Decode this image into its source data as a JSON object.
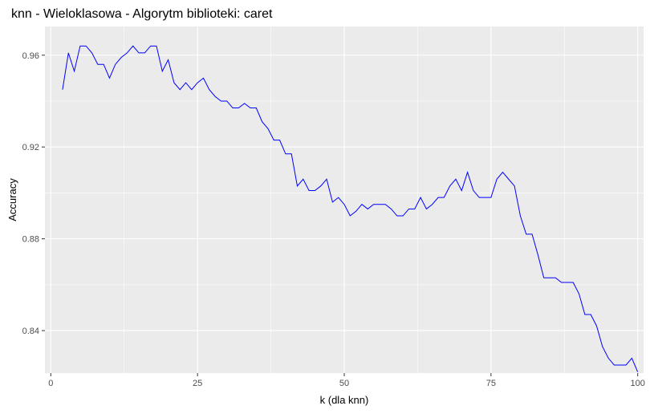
{
  "chart_data": {
    "type": "line",
    "title": "knn - Wieloklasowa - Algorytm biblioteki: caret",
    "xlabel": "k (dla knn)",
    "ylabel": "Accuracy",
    "xlim": [
      -1,
      101
    ],
    "ylim": [
      0.8215,
      0.9725
    ],
    "x_ticks": [
      0,
      25,
      50,
      75,
      100
    ],
    "x_tick_labels": [
      "0",
      "25",
      "50",
      "75",
      "100"
    ],
    "y_ticks": [
      0.84,
      0.88,
      0.92,
      0.96
    ],
    "y_tick_labels": [
      "0.84",
      "0.88",
      "0.92",
      "0.96"
    ],
    "grid": true,
    "legend": "none",
    "colors": {
      "panel": "#ebebeb",
      "grid": "#ffffff",
      "line": "#0000ff"
    },
    "series": [
      {
        "x": [
          2,
          3,
          4,
          5,
          6,
          7,
          8,
          9,
          10,
          11,
          12,
          13,
          14,
          15,
          16,
          17,
          18,
          19,
          20,
          21,
          22,
          23,
          24,
          25,
          26,
          27,
          28,
          29,
          30,
          31,
          32,
          33,
          34,
          35,
          36,
          37,
          38,
          39,
          40,
          41,
          42,
          43,
          44,
          45,
          46,
          47,
          48,
          49,
          50,
          51,
          52,
          53,
          54,
          55,
          56,
          57,
          58,
          59,
          60,
          61,
          62,
          63,
          64,
          65,
          66,
          67,
          68,
          69,
          70,
          71,
          72,
          73,
          74,
          75,
          76,
          77,
          78,
          79,
          80,
          81,
          82,
          83,
          84,
          85,
          86,
          87,
          88,
          89,
          90,
          91,
          92,
          93,
          94,
          95,
          96,
          97,
          98,
          99,
          100
        ],
        "values": [
          0.945,
          0.961,
          0.953,
          0.964,
          0.964,
          0.961,
          0.956,
          0.956,
          0.95,
          0.956,
          0.959,
          0.961,
          0.964,
          0.961,
          0.961,
          0.964,
          0.964,
          0.953,
          0.958,
          0.948,
          0.945,
          0.948,
          0.945,
          0.948,
          0.95,
          0.945,
          0.942,
          0.94,
          0.94,
          0.937,
          0.937,
          0.939,
          0.937,
          0.937,
          0.931,
          0.928,
          0.923,
          0.923,
          0.917,
          0.917,
          0.903,
          0.906,
          0.901,
          0.901,
          0.903,
          0.906,
          0.896,
          0.898,
          0.895,
          0.89,
          0.892,
          0.895,
          0.893,
          0.895,
          0.895,
          0.895,
          0.893,
          0.89,
          0.89,
          0.893,
          0.893,
          0.898,
          0.893,
          0.895,
          0.898,
          0.898,
          0.903,
          0.906,
          0.901,
          0.909,
          0.901,
          0.898,
          0.898,
          0.898,
          0.906,
          0.909,
          0.906,
          0.903,
          0.89,
          0.882,
          0.882,
          0.873,
          0.863,
          0.863,
          0.863,
          0.861,
          0.861,
          0.861,
          0.856,
          0.847,
          0.847,
          0.842,
          0.833,
          0.828,
          0.825,
          0.825,
          0.825,
          0.828,
          0.822
        ]
      }
    ]
  }
}
